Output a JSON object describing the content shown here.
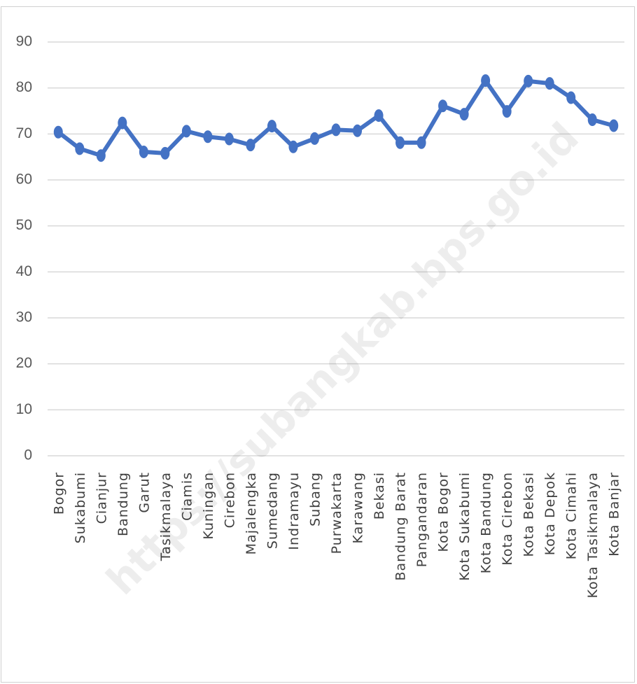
{
  "chart_data": {
    "type": "line",
    "title": "",
    "xlabel": "",
    "ylabel": "",
    "ylim": [
      0,
      90
    ],
    "yticks": [
      0,
      10,
      20,
      30,
      40,
      50,
      60,
      70,
      80,
      90
    ],
    "grid": true,
    "legend": "none",
    "categories": [
      "Bogor",
      "Sukabumi",
      "Cianjur",
      "Bandung",
      "Garut",
      "Tasikmalaya",
      "Ciamis",
      "Kuningan",
      "Cirebon",
      "Majalengka",
      "Sumedang",
      "Indramayu",
      "Subang",
      "Purwakarta",
      "Karawang",
      "Bekasi",
      "Bandung Barat",
      "Pangandaran",
      "Kota Bogor",
      "Kota Sukabumi",
      "Kota Bandung",
      "Kota Cirebon",
      "Kota Bekasi",
      "Kota Depok",
      "Kota Cimahi",
      "Kota Tasikmalaya",
      "Kota Banjar"
    ],
    "series": [
      {
        "name": "",
        "color": "#4472c4",
        "values": [
          70.4,
          66.8,
          65.3,
          72.4,
          66.1,
          65.8,
          70.6,
          69.4,
          68.9,
          67.6,
          71.7,
          67.2,
          69.0,
          70.9,
          70.7,
          74.0,
          68.1,
          68.1,
          76.1,
          74.3,
          81.6,
          74.9,
          81.5,
          81.0,
          77.9,
          73.1,
          71.8
        ]
      }
    ],
    "watermark": "https://subangkab.bps.go.id"
  }
}
